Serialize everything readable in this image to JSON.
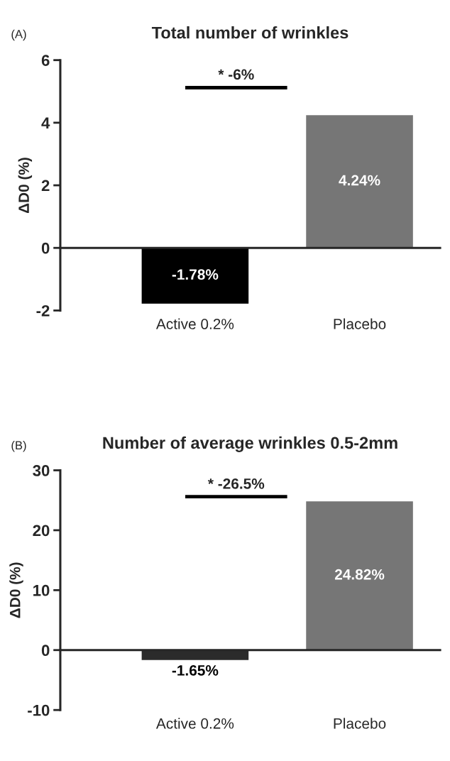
{
  "chart_data": [
    {
      "type": "bar",
      "title": "Total number of wrinkles",
      "ylabel": "ΔD0 (%)",
      "categories": [
        "Active 0.2%",
        "Placebo"
      ],
      "values": [
        -1.78,
        4.24
      ],
      "colors": [
        "#000000",
        "#767676"
      ],
      "value_labels": [
        "-1.78%",
        "4.24%"
      ],
      "ylim": [
        -2,
        6
      ],
      "yticks": [
        -2,
        0,
        2,
        4,
        6
      ],
      "legend": false,
      "annotations": [
        "(A)",
        "* -6%"
      ]
    },
    {
      "type": "bar",
      "title": "Number of average wrinkles 0.5-2mm",
      "ylabel": "ΔD0 (%)",
      "categories": [
        "Active 0.2%",
        "Placebo"
      ],
      "values": [
        -1.65,
        24.82
      ],
      "colors": [
        "#2b2b2b",
        "#767676"
      ],
      "value_labels": [
        "-1.65%",
        "24.82%"
      ],
      "ylim": [
        -10,
        30
      ],
      "yticks": [
        -10,
        0,
        10,
        20,
        30
      ],
      "legend": false,
      "annotations": [
        "(B)",
        "* -26.5%"
      ]
    }
  ]
}
